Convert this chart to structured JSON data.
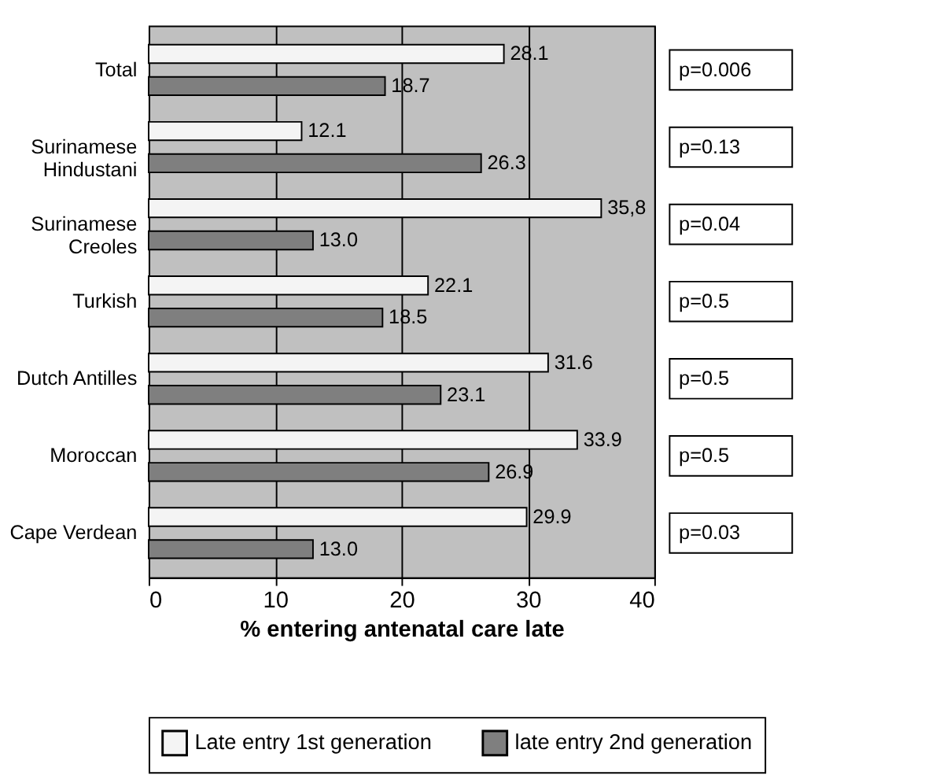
{
  "chart_data": {
    "type": "bar",
    "orientation": "horizontal",
    "categories": [
      "Total",
      "Surinamese\nHindustani",
      "Surinamese\nCreoles",
      "Turkish",
      "Dutch Antilles",
      "Moroccan",
      "Cape Verdean"
    ],
    "series": [
      {
        "name": "Late entry 1st generation",
        "color": "#f4f4f4",
        "values": [
          28.1,
          12.1,
          35.8,
          22.1,
          31.6,
          33.9,
          29.9
        ],
        "value_labels": [
          "28.1",
          "12.1",
          "35,8",
          "22.1",
          "31.6",
          "33.9",
          "29.9"
        ]
      },
      {
        "name": "late entry 2nd generation",
        "color": "#7f7f7f",
        "values": [
          18.7,
          26.3,
          13.0,
          18.5,
          23.1,
          26.9,
          13.0
        ],
        "value_labels": [
          "18.7",
          "26.3",
          "13.0",
          "18.5",
          "23.1",
          "26.9",
          "13.0"
        ]
      }
    ],
    "xlabel": "% entering antenatal care late",
    "xlim": [
      0,
      40
    ],
    "xticks": [
      0,
      10,
      20,
      30,
      40
    ],
    "grid": "x",
    "legend": "bottom",
    "annotations": [
      "p=0.006",
      "p=0.13",
      "p=0.04",
      "p=0.5",
      "p=0.5",
      "p=0.5",
      "p=0.03"
    ]
  }
}
